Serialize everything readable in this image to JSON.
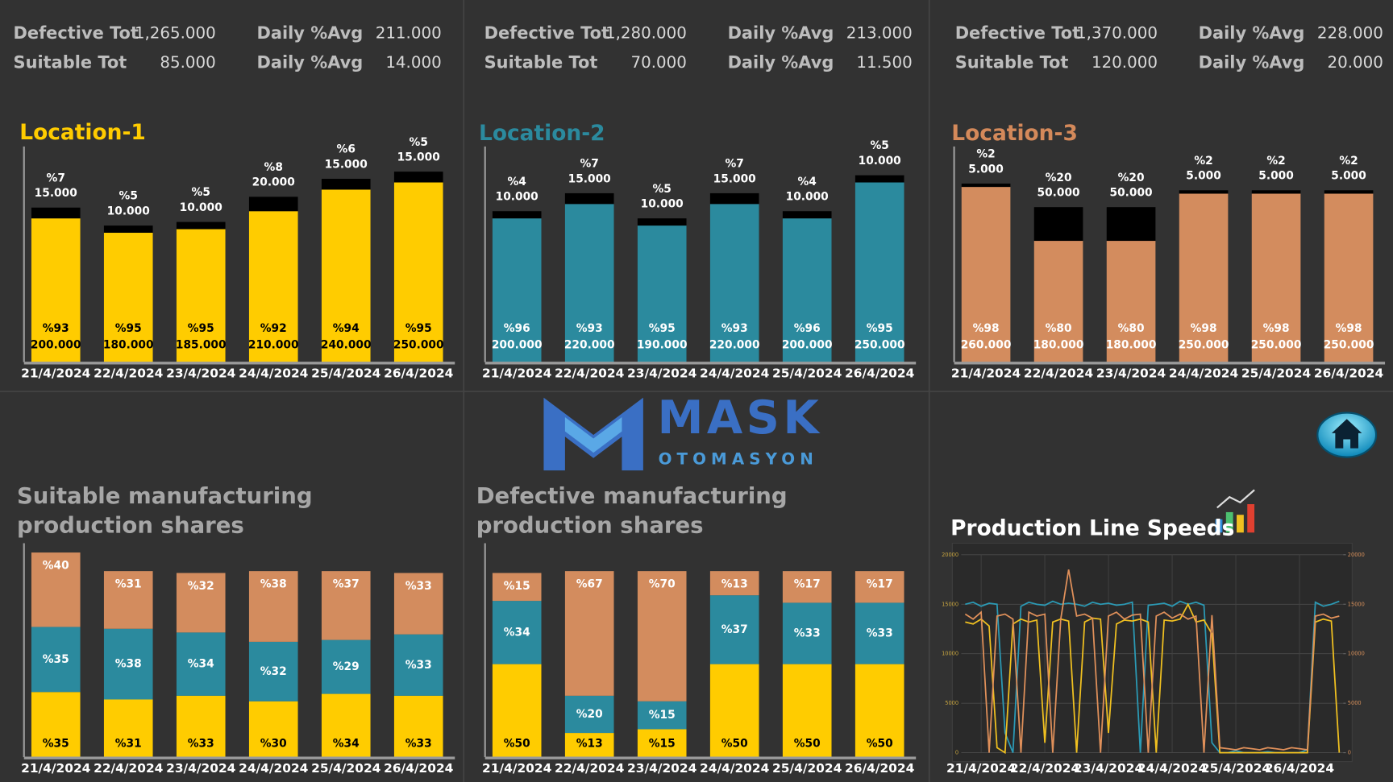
{
  "stats": [
    {
      "rows": [
        [
          "Defective Tot",
          "1,265.000",
          "Daily %Avg",
          "211.000"
        ],
        [
          "Suitable Tot",
          "85.000",
          "Daily %Avg",
          "14.000"
        ]
      ]
    },
    {
      "rows": [
        [
          "Defective Tot",
          "1,280.000",
          "Daily %Avg",
          "213.000"
        ],
        [
          "Suitable Tot",
          "70.000",
          "Daily %Avg",
          "11.500"
        ]
      ]
    },
    {
      "rows": [
        [
          "Defective Tot",
          "1,370.000",
          "Daily %Avg",
          "228.000"
        ],
        [
          "Suitable Tot",
          "120.000",
          "Daily %Avg",
          "20.000"
        ]
      ]
    }
  ],
  "logo": {
    "name": "MASK",
    "tagline": "OTOMASYON"
  },
  "chart_data": [
    {
      "type": "stacked",
      "title": "Location-1",
      "title_color": "#ffcc00",
      "ylim": [
        0,
        300
      ],
      "categories": [
        "21/4/2024",
        "22/4/2024",
        "23/4/2024",
        "24/4/2024",
        "25/4/2024",
        "26/4/2024"
      ],
      "series": [
        {
          "color": "#ffcc00",
          "label_color": "#000000",
          "values": [
            200,
            180,
            185,
            210,
            240,
            250
          ],
          "value_labels": [
            "200.000",
            "180.000",
            "185.000",
            "210.000",
            "240.000",
            "250.000"
          ],
          "share_labels": [
            "%93",
            "%95",
            "%95",
            "%92",
            "%94",
            "%95"
          ]
        },
        {
          "color": "#000000",
          "label_color": "#ffffff",
          "values": [
            15,
            10,
            10,
            20,
            15,
            15
          ],
          "value_labels": [
            "15.000",
            "10.000",
            "10.000",
            "20.000",
            "15.000",
            "15.000"
          ],
          "share_labels": [
            "%7",
            "%5",
            "%5",
            "%8",
            "%6",
            "%5"
          ]
        }
      ]
    },
    {
      "type": "stacked",
      "title": "Location-2",
      "title_color": "#2b8a9e",
      "ylim": [
        0,
        300
      ],
      "categories": [
        "21/4/2024",
        "22/4/2024",
        "23/4/2024",
        "24/4/2024",
        "25/4/2024",
        "26/4/2024"
      ],
      "series": [
        {
          "color": "#2b8a9e",
          "label_color": "#ffffff",
          "values": [
            200,
            220,
            190,
            220,
            200,
            250
          ],
          "value_labels": [
            "200.000",
            "220.000",
            "190.000",
            "220.000",
            "200.000",
            "250.000"
          ],
          "share_labels": [
            "%96",
            "%93",
            "%95",
            "%93",
            "%96",
            "%95"
          ]
        },
        {
          "color": "#000000",
          "label_color": "#ffffff",
          "values": [
            10,
            15,
            10,
            15,
            10,
            10
          ],
          "value_labels": [
            "10.000",
            "15.000",
            "10.000",
            "15.000",
            "10.000",
            "10.000"
          ],
          "share_labels": [
            "%4",
            "%7",
            "%5",
            "%7",
            "%4",
            "%5"
          ]
        }
      ]
    },
    {
      "type": "stacked",
      "title": "Location-3",
      "title_color": "#d4895a",
      "ylim": [
        0,
        320
      ],
      "categories": [
        "21/4/2024",
        "22/4/2024",
        "23/4/2024",
        "24/4/2024",
        "25/4/2024",
        "26/4/2024"
      ],
      "series": [
        {
          "color": "#d38c5e",
          "label_color": "#ffffff",
          "values": [
            260,
            180,
            180,
            250,
            250,
            250
          ],
          "value_labels": [
            "260.000",
            "180.000",
            "180.000",
            "250.000",
            "250.000",
            "250.000"
          ],
          "share_labels": [
            "%98",
            "%80",
            "%80",
            "%98",
            "%98",
            "%98"
          ]
        },
        {
          "color": "#000000",
          "label_color": "#ffffff",
          "values": [
            5,
            50,
            50,
            5,
            5,
            5
          ],
          "value_labels": [
            "5.000",
            "50.000",
            "50.000",
            "5.000",
            "5.000",
            "5.000"
          ],
          "share_labels": [
            "%2",
            "%20",
            "%20",
            "%2",
            "%2",
            "%2"
          ]
        }
      ]
    },
    {
      "type": "percent",
      "title_lines": [
        "Suitable manufacturing",
        "production shares"
      ],
      "ylim": [
        0,
        115
      ],
      "categories": [
        "21/4/2024",
        "22/4/2024",
        "23/4/2024",
        "24/4/2024",
        "25/4/2024",
        "26/4/2024"
      ],
      "series": [
        {
          "color": "#ffcc00",
          "label_color": "#000000",
          "values": [
            35,
            31,
            33,
            30,
            34,
            33
          ],
          "value_labels": [
            "%35",
            "%31",
            "%33",
            "%30",
            "%34",
            "%33"
          ]
        },
        {
          "color": "#2b8a9e",
          "label_color": "#ffffff",
          "values": [
            35,
            38,
            34,
            32,
            29,
            33
          ],
          "value_labels": [
            "%35",
            "%38",
            "%34",
            "%32",
            "%29",
            "%33"
          ]
        },
        {
          "color": "#d38c5e",
          "label_color": "#ffffff",
          "values": [
            40,
            31,
            32,
            38,
            37,
            33
          ],
          "value_labels": [
            "%40",
            "%31",
            "%32",
            "%38",
            "%37",
            "%33"
          ]
        }
      ]
    },
    {
      "type": "percent",
      "title_lines": [
        "Defective manufacturing",
        "production shares"
      ],
      "ylim": [
        0,
        115
      ],
      "categories": [
        "21/4/2024",
        "22/4/2024",
        "23/4/2024",
        "24/4/2024",
        "25/4/2024",
        "26/4/2024"
      ],
      "series": [
        {
          "color": "#ffcc00",
          "label_color": "#000000",
          "values": [
            50,
            13,
            15,
            50,
            50,
            50
          ],
          "value_labels": [
            "%50",
            "%13",
            "%15",
            "%50",
            "%50",
            "%50"
          ]
        },
        {
          "color": "#2b8a9e",
          "label_color": "#ffffff",
          "values": [
            34,
            20,
            15,
            37,
            33,
            33
          ],
          "value_labels": [
            "%34",
            "%20",
            "%15",
            "%37",
            "%33",
            "%33"
          ]
        },
        {
          "color": "#d38c5e",
          "label_color": "#ffffff",
          "values": [
            15,
            67,
            70,
            13,
            17,
            17
          ],
          "value_labels": [
            "%15",
            "%67",
            "%70",
            "%13",
            "%17",
            "%17"
          ]
        }
      ]
    },
    {
      "type": "line",
      "title": "Production Line Speeds",
      "ylim": [
        0,
        20000
      ],
      "yticks": [
        0,
        5000,
        10000,
        15000,
        20000
      ],
      "y2lim": [
        0,
        20000
      ],
      "y2ticks": [
        0,
        5000,
        10000,
        15000,
        20000
      ],
      "grid": true,
      "categories": [
        null,
        null,
        "21/4/2024",
        null,
        null,
        null,
        null,
        null,
        null,
        null,
        "22/4/2024",
        null,
        null,
        null,
        null,
        null,
        null,
        null,
        "23/4/2024",
        null,
        null,
        null,
        null,
        null,
        null,
        null,
        "24/4/2024",
        null,
        null,
        null,
        null,
        null,
        null,
        null,
        "25/4/2024",
        null,
        null,
        null,
        null,
        null,
        null,
        null,
        "26/4/2024",
        null,
        null,
        null,
        null,
        null
      ],
      "series": [
        {
          "color": "#2b9ab5",
          "values": [
            15000,
            15200,
            14800,
            15100,
            15000,
            2000,
            0,
            14800,
            15200,
            15000,
            14900,
            15300,
            15000,
            15100,
            15000,
            14800,
            15200,
            15000,
            15100,
            14900,
            15000,
            15200,
            0,
            14900,
            15000,
            15100,
            14800,
            15300,
            15000,
            15200,
            14900,
            1000,
            0,
            0,
            200,
            0,
            0,
            0,
            100,
            0,
            0,
            0,
            0,
            300,
            15200,
            14800,
            15000,
            15300
          ]
        },
        {
          "color": "#f0c020",
          "values": [
            13200,
            13000,
            13500,
            12800,
            500,
            0,
            13000,
            13500,
            13200,
            13400,
            1000,
            13200,
            13500,
            13300,
            0,
            13200,
            13600,
            13500,
            2000,
            13000,
            13400,
            13300,
            13500,
            13200,
            0,
            13400,
            13300,
            13500,
            15000,
            13200,
            13400,
            12000,
            0,
            0,
            0,
            0,
            0,
            0,
            0,
            0,
            0,
            0,
            0,
            0,
            13200,
            13500,
            13300,
            0
          ]
        },
        {
          "color": "#e0905a",
          "values": [
            14000,
            13500,
            14200,
            0,
            13800,
            14000,
            13500,
            0,
            14200,
            13800,
            14000,
            0,
            13500,
            18500,
            13800,
            14000,
            13600,
            0,
            13800,
            14200,
            13500,
            13900,
            14000,
            0,
            13800,
            14200,
            13600,
            14000,
            13500,
            13800,
            0,
            13900,
            500,
            400,
            300,
            500,
            400,
            300,
            500,
            400,
            300,
            500,
            400,
            300,
            13800,
            14000,
            13600,
            13800
          ]
        }
      ]
    }
  ]
}
